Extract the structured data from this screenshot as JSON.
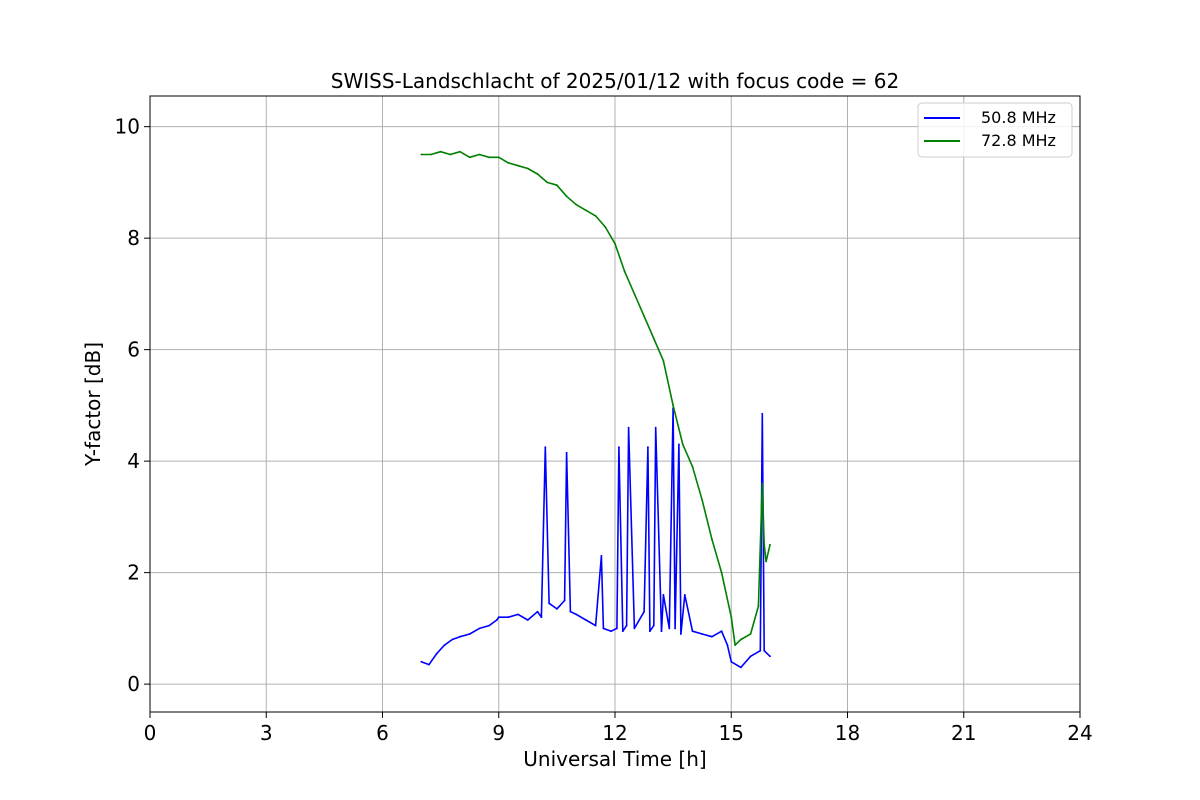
{
  "chart_data": {
    "type": "line",
    "title": "SWISS-Landschlacht of 2025/01/12 with focus code = 62",
    "xlabel": "Universal Time [h]",
    "ylabel": "Y-factor [dB]",
    "xlim": [
      0,
      24
    ],
    "ylim": [
      -0.5,
      10.55
    ],
    "xticks": [
      0,
      3,
      6,
      9,
      12,
      15,
      18,
      21,
      24
    ],
    "yticks": [
      0,
      2,
      4,
      6,
      8,
      10
    ],
    "grid": true,
    "legend_position": "top-right",
    "series": [
      {
        "name": "50.8 MHz",
        "color": "#0000ff",
        "x": [
          7.0,
          7.2,
          7.4,
          7.6,
          7.8,
          8.0,
          8.25,
          8.5,
          8.75,
          8.95,
          9.0,
          9.25,
          9.5,
          9.75,
          10.0,
          10.1,
          10.2,
          10.3,
          10.5,
          10.7,
          10.75,
          10.85,
          11.0,
          11.25,
          11.5,
          11.65,
          11.7,
          11.9,
          12.05,
          12.1,
          12.2,
          12.3,
          12.35,
          12.5,
          12.75,
          12.85,
          12.9,
          13.0,
          13.05,
          13.2,
          13.25,
          13.4,
          13.5,
          13.55,
          13.65,
          13.7,
          13.8,
          14.0,
          14.25,
          14.5,
          14.75,
          14.9,
          15.0,
          15.25,
          15.5,
          15.75,
          15.8,
          15.85,
          16.0
        ],
        "values": [
          0.4,
          0.35,
          0.55,
          0.7,
          0.8,
          0.85,
          0.9,
          1.0,
          1.05,
          1.15,
          1.2,
          1.2,
          1.25,
          1.15,
          1.3,
          1.2,
          4.25,
          1.45,
          1.35,
          1.5,
          4.15,
          1.3,
          1.25,
          1.15,
          1.05,
          2.3,
          1.0,
          0.95,
          1.0,
          4.25,
          0.95,
          1.05,
          4.6,
          1.0,
          1.3,
          4.25,
          0.95,
          1.05,
          4.6,
          0.95,
          1.6,
          1.0,
          4.95,
          1.0,
          4.3,
          0.9,
          1.6,
          0.95,
          0.9,
          0.85,
          0.95,
          0.7,
          0.4,
          0.3,
          0.5,
          0.6,
          4.85,
          0.6,
          0.5
        ]
      },
      {
        "name": "72.8 MHz",
        "color": "#008000",
        "x": [
          7.0,
          7.25,
          7.5,
          7.75,
          8.0,
          8.25,
          8.5,
          8.75,
          9.0,
          9.25,
          9.5,
          9.75,
          10.0,
          10.25,
          10.5,
          10.75,
          11.0,
          11.25,
          11.5,
          11.75,
          12.0,
          12.25,
          12.5,
          12.75,
          13.0,
          13.25,
          13.5,
          13.75,
          14.0,
          14.25,
          14.5,
          14.75,
          15.0,
          15.1,
          15.25,
          15.5,
          15.7,
          15.8,
          15.85,
          15.9,
          16.0
        ],
        "values": [
          9.5,
          9.5,
          9.55,
          9.5,
          9.55,
          9.45,
          9.5,
          9.45,
          9.45,
          9.35,
          9.3,
          9.25,
          9.15,
          9.0,
          8.95,
          8.75,
          8.6,
          8.5,
          8.4,
          8.2,
          7.9,
          7.4,
          7.0,
          6.6,
          6.2,
          5.8,
          5.0,
          4.3,
          3.9,
          3.3,
          2.6,
          2.0,
          1.2,
          0.7,
          0.8,
          0.9,
          1.4,
          3.6,
          2.5,
          2.2,
          2.5
        ]
      }
    ]
  }
}
